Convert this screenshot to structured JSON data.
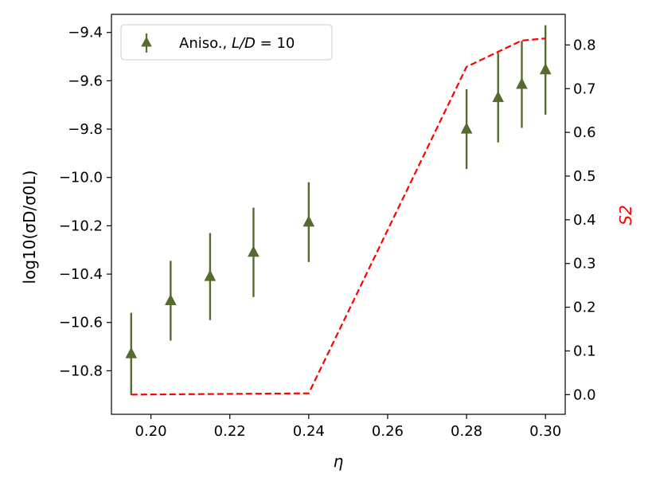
{
  "chart_data": {
    "type": "scatter",
    "x_axis": {
      "label": "η",
      "range": [
        0.19,
        0.305
      ],
      "ticks": [
        0.2,
        0.22,
        0.24,
        0.26,
        0.28,
        0.3
      ],
      "tick_labels": [
        "0.20",
        "0.22",
        "0.24",
        "0.26",
        "0.28",
        "0.30"
      ]
    },
    "y_axis_left": {
      "label": "log10(σD/σ0L)",
      "range": [
        -10.98,
        -9.325
      ],
      "ticks": [
        -10.8,
        -10.6,
        -10.4,
        -10.2,
        -10.0,
        -9.8,
        -9.6,
        -9.4
      ],
      "tick_labels": [
        "−10.8",
        "−10.6",
        "−10.4",
        "−10.2",
        "−10.0",
        "−9.8",
        "−9.6",
        "−9.4"
      ]
    },
    "y_axis_right": {
      "label": "S2",
      "color": "#ff0000",
      "range": [
        -0.045,
        0.87
      ],
      "ticks": [
        0.0,
        0.1,
        0.2,
        0.3,
        0.4,
        0.5,
        0.6,
        0.7,
        0.8
      ],
      "tick_labels": [
        "0.0",
        "0.1",
        "0.2",
        "0.3",
        "0.4",
        "0.5",
        "0.6",
        "0.7",
        "0.8"
      ]
    },
    "series": [
      {
        "name": "Aniso., L/D = 10",
        "axis": "left",
        "kind": "errorbar",
        "marker": "triangle-up",
        "color": "#556b2f",
        "points": [
          {
            "x": 0.195,
            "y": -10.73,
            "err": 0.17
          },
          {
            "x": 0.205,
            "y": -10.51,
            "err": 0.165
          },
          {
            "x": 0.215,
            "y": -10.41,
            "err": 0.18
          },
          {
            "x": 0.226,
            "y": -10.31,
            "err": 0.185
          },
          {
            "x": 0.24,
            "y": -10.185,
            "err": 0.165
          },
          {
            "x": 0.28,
            "y": -9.8,
            "err": 0.165
          },
          {
            "x": 0.288,
            "y": -9.67,
            "err": 0.185
          },
          {
            "x": 0.294,
            "y": -9.615,
            "err": 0.18
          },
          {
            "x": 0.3,
            "y": -9.555,
            "err": 0.185
          }
        ]
      },
      {
        "name": "",
        "axis": "right",
        "kind": "line",
        "style": "dashed",
        "color": "#ff0000",
        "points": [
          {
            "x": 0.195,
            "y": 0.0
          },
          {
            "x": 0.24,
            "y": 0.003
          },
          {
            "x": 0.28,
            "y": 0.75
          },
          {
            "x": 0.294,
            "y": 0.81
          },
          {
            "x": 0.3,
            "y": 0.815
          }
        ]
      }
    ],
    "legend": {
      "placement": "upper-left",
      "entries": [
        {
          "label_main": "Aniso., ",
          "label_ld": "L/D",
          "label_eq": " = 10",
          "marker": "triangle-up",
          "color": "#556b2f"
        }
      ]
    },
    "grid": false
  }
}
